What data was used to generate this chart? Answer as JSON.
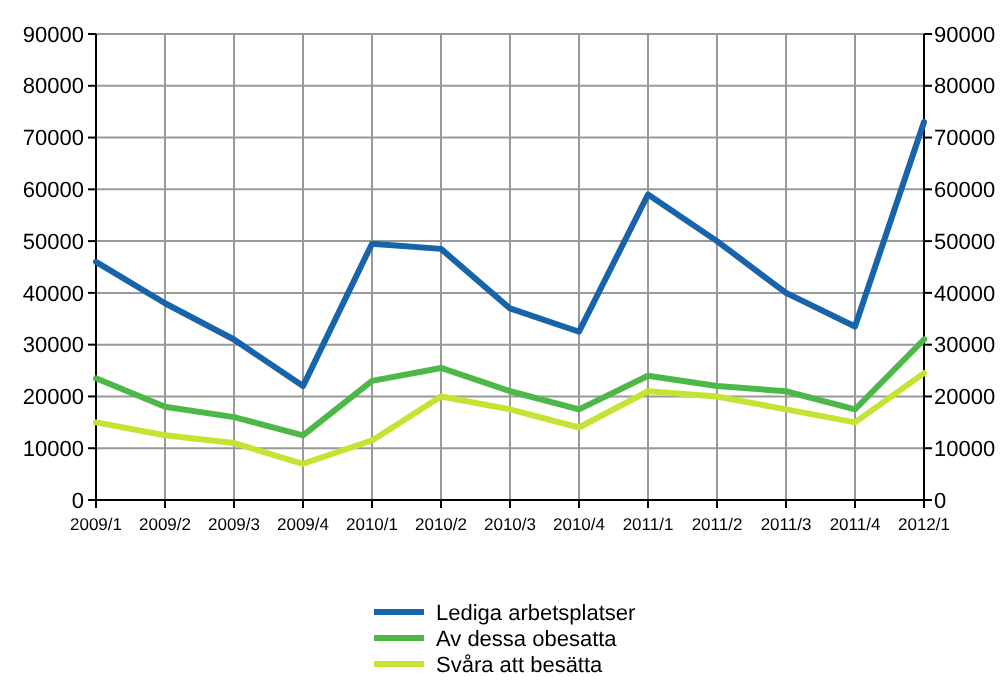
{
  "chart_data": {
    "type": "line",
    "categories": [
      "2009/1",
      "2009/2",
      "2009/3",
      "2009/4",
      "2010/1",
      "2010/2",
      "2010/3",
      "2010/4",
      "2011/1",
      "2011/2",
      "2011/3",
      "2011/4",
      "2012/1"
    ],
    "series": [
      {
        "name": "Lediga arbetsplatser",
        "color": "#1764ab",
        "values": [
          46000,
          38000,
          31000,
          22000,
          49500,
          48500,
          37000,
          32500,
          59000,
          50000,
          40000,
          33500,
          73000
        ]
      },
      {
        "name": "Av dessa obesatta",
        "color": "#4db848",
        "values": [
          23500,
          18000,
          16000,
          12500,
          23000,
          25500,
          21000,
          17500,
          24000,
          22000,
          21000,
          17500,
          31000
        ]
      },
      {
        "name": "Svåra att besätta",
        "color": "#c4e434",
        "values": [
          15000,
          12500,
          11000,
          7000,
          11500,
          20000,
          17500,
          14000,
          21000,
          20000,
          17500,
          15000,
          24500
        ]
      }
    ],
    "ylim": [
      0,
      90000
    ],
    "yticks": [
      0,
      10000,
      20000,
      30000,
      40000,
      50000,
      60000,
      70000,
      80000,
      90000
    ],
    "y2lim": [
      0,
      90000
    ],
    "y2ticks": [
      0,
      10000,
      20000,
      30000,
      40000,
      50000,
      60000,
      70000,
      80000,
      90000
    ],
    "grid": true,
    "legend": "bottom",
    "line_style": "solid"
  }
}
